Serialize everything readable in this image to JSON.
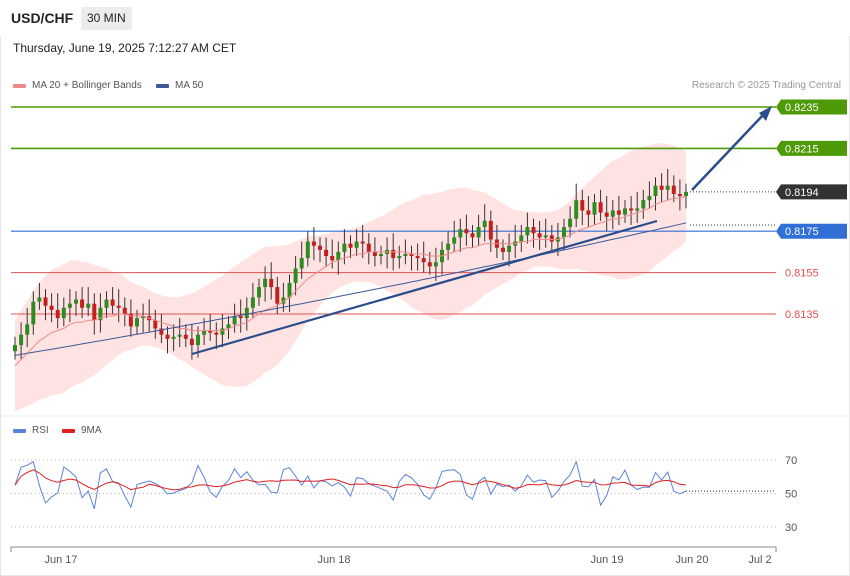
{
  "header": {
    "symbol": "USD/CHF",
    "timeframe": "30 MIN",
    "datetime": "Thursday, June 19, 2025 7:12:27 AM CET"
  },
  "legend": {
    "ma20_label": "MA 20 + Bollinger Bands",
    "ma50_label": "MA 50",
    "credit": "Research © 2025 Trading Central"
  },
  "rsi_legend": {
    "rsi_label": "RSI",
    "ma_label": "9MA"
  },
  "colors": {
    "bull": "#2e8b22",
    "bear": "#c41e1e",
    "resistance": "#4e9a06",
    "support_blue": "#2f6fd6",
    "support_red": "#e05252",
    "ma20": "#f08a8a",
    "ma50": "#3b5998",
    "trend": "#2b4d8c",
    "band": "#ffd9d9",
    "current": "#333333"
  },
  "chart_data": [
    {
      "type": "candlestick",
      "ylim": [
        0.81,
        0.824
      ],
      "levels": [
        {
          "label": "0.8235",
          "value": 0.8235,
          "kind": "resistance"
        },
        {
          "label": "0.8215",
          "value": 0.8215,
          "kind": "resistance"
        },
        {
          "label": "0.8194",
          "value": 0.8194,
          "kind": "current"
        },
        {
          "label": "0.8175",
          "value": 0.8175,
          "kind": "pivot"
        },
        {
          "label": "0.8155",
          "value": 0.8155,
          "kind": "support"
        },
        {
          "label": "0.8135",
          "value": 0.8135,
          "kind": "support"
        }
      ],
      "x_ticks": [
        "Jun 17",
        "Jun 18",
        "Jun 19",
        "Jun 20",
        "Jul 2"
      ],
      "candles_close": [
        0.812,
        0.8125,
        0.813,
        0.8141,
        0.8143,
        0.8139,
        0.8137,
        0.8133,
        0.8138,
        0.814,
        0.8142,
        0.8138,
        0.814,
        0.8132,
        0.8138,
        0.8142,
        0.8139,
        0.8138,
        0.8135,
        0.8129,
        0.8133,
        0.8134,
        0.8132,
        0.8128,
        0.8125,
        0.8123,
        0.8124,
        0.8125,
        0.8123,
        0.812,
        0.8125,
        0.8127,
        0.8126,
        0.8125,
        0.8128,
        0.813,
        0.8134,
        0.8133,
        0.8138,
        0.8143,
        0.8148,
        0.8152,
        0.8148,
        0.814,
        0.8143,
        0.815,
        0.8157,
        0.8162,
        0.817,
        0.8168,
        0.8166,
        0.8163,
        0.8161,
        0.8165,
        0.8169,
        0.8167,
        0.817,
        0.8169,
        0.8165,
        0.8163,
        0.8164,
        0.8166,
        0.8162,
        0.8163,
        0.8164,
        0.8163,
        0.8162,
        0.816,
        0.8158,
        0.816,
        0.8166,
        0.8169,
        0.8172,
        0.8176,
        0.8174,
        0.8172,
        0.8177,
        0.818,
        0.8171,
        0.8167,
        0.8165,
        0.8168,
        0.817,
        0.8173,
        0.8177,
        0.8174,
        0.8172,
        0.8173,
        0.817,
        0.8172,
        0.8177,
        0.8181,
        0.819,
        0.8185,
        0.8183,
        0.8189,
        0.8184,
        0.8182,
        0.8185,
        0.8183,
        0.8186,
        0.8185,
        0.8186,
        0.819,
        0.8192,
        0.8197,
        0.8195,
        0.8197,
        0.8193,
        0.8192,
        0.8194
      ],
      "ma20": [
        0.811,
        0.8113,
        0.8116,
        0.8119,
        0.8122,
        0.8124,
        0.8126,
        0.8127,
        0.8128,
        0.813,
        0.8131,
        0.8131,
        0.8132,
        0.8132,
        0.8133,
        0.8134,
        0.8134,
        0.8135,
        0.8135,
        0.8134,
        0.8134,
        0.8134,
        0.8133,
        0.8132,
        0.8131,
        0.813,
        0.8129,
        0.8128,
        0.8128,
        0.8127,
        0.8127,
        0.8127,
        0.8127,
        0.8127,
        0.8127,
        0.8128,
        0.8129,
        0.813,
        0.8131,
        0.8133,
        0.8135,
        0.8137,
        0.8138,
        0.8139,
        0.8141,
        0.8143,
        0.8146,
        0.8149,
        0.8152,
        0.8154,
        0.8156,
        0.8158,
        0.816,
        0.8161,
        0.8162,
        0.8163,
        0.8164,
        0.8164,
        0.8165,
        0.8165,
        0.8165,
        0.8165,
        0.8165,
        0.8165,
        0.8165,
        0.8164,
        0.8164,
        0.8164,
        0.8163,
        0.8163,
        0.8163,
        0.8164,
        0.8165,
        0.8166,
        0.8167,
        0.8167,
        0.8168,
        0.8169,
        0.8169,
        0.8169,
        0.8169,
        0.8169,
        0.8169,
        0.817,
        0.817,
        0.8171,
        0.8171,
        0.8171,
        0.8171,
        0.8171,
        0.8172,
        0.8173,
        0.8175,
        0.8176,
        0.8177,
        0.8178,
        0.8179,
        0.818,
        0.8181,
        0.8181,
        0.8182,
        0.8183,
        0.8184,
        0.8185,
        0.8186,
        0.8188,
        0.8189,
        0.819,
        0.8191,
        0.8191,
        0.8192
      ],
      "ma50_start": 0.8115,
      "ma50_end": 0.8179
    },
    {
      "type": "line",
      "ylim": [
        25,
        78
      ],
      "y_ticks": [
        "70",
        "50",
        "30"
      ],
      "series": [
        {
          "name": "RSI"
        },
        {
          "name": "9MA"
        }
      ]
    }
  ]
}
